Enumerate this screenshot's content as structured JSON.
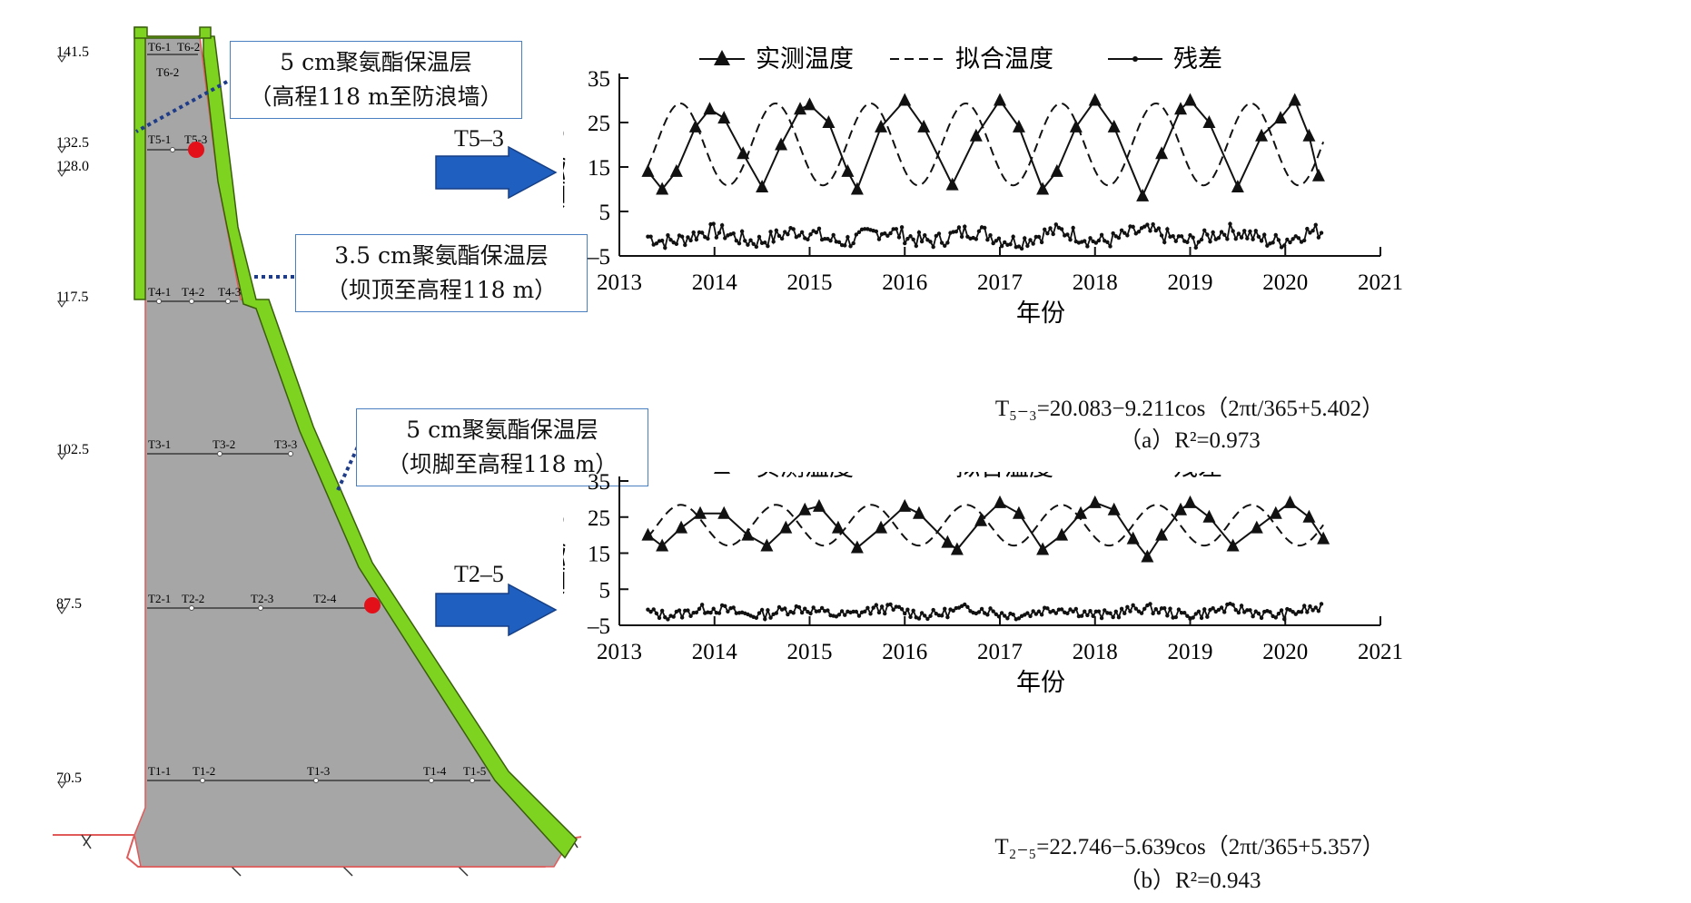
{
  "dam": {
    "elevations": [
      "141.5",
      "132.5",
      "128.0",
      "117.5",
      "102.5",
      "87.5",
      "70.5"
    ],
    "sensor_rows": [
      [
        "T6-1",
        "T6-2"
      ],
      [
        "T6-2"
      ],
      [
        "T5-1",
        "T5-3"
      ],
      [
        "T4-1",
        "T4-2",
        "T4-3"
      ],
      [
        "T3-1",
        "T3-2",
        "T3-3"
      ],
      [
        "T2-1",
        "T2-2",
        "T2-3",
        "T2-4"
      ],
      [
        "T1-1",
        "T1-2",
        "T1-3",
        "T1-4",
        "T1-5"
      ]
    ],
    "callouts": [
      {
        "line1": "5 cm聚氨酯保温层",
        "line2": "（高程118 m至防浪墙）"
      },
      {
        "line1": "3.5 cm聚氨酯保温层",
        "line2": "（坝顶至高程118 m）"
      },
      {
        "line1": "5 cm聚氨酯保温层",
        "line2": "（坝脚至高程118 m）"
      }
    ],
    "arrows": [
      "T5–3",
      "T2–5"
    ],
    "colors": {
      "insulation": "#7ed321",
      "concrete": "#a6a6a6",
      "arrow": "#1f5fbf",
      "marker": "#e3101a",
      "foundation": "#e05a5a"
    }
  },
  "chart_data": [
    {
      "type": "line",
      "id": "a",
      "legend": [
        "实测温度",
        "拟合温度",
        "残差"
      ],
      "ylabel": "温度/℃",
      "xlabel": "年份",
      "yticks": [
        "35",
        "25",
        "15",
        "5",
        "–5"
      ],
      "ylim": [
        -5,
        35
      ],
      "xticks": [
        "2013",
        "2014",
        "2015",
        "2016",
        "2017",
        "2018",
        "2019",
        "2020",
        "2021"
      ],
      "xlim": [
        2013,
        2021
      ],
      "x_start": 2013.3,
      "x_end": 2020.4,
      "fit": {
        "a": 20.083,
        "b": 9.211,
        "phase": 5.402
      },
      "measured_sample": [
        [
          2013.3,
          14
        ],
        [
          2013.45,
          10
        ],
        [
          2013.6,
          14
        ],
        [
          2013.8,
          24
        ],
        [
          2013.95,
          28
        ],
        [
          2014.1,
          26
        ],
        [
          2014.3,
          18
        ],
        [
          2014.5,
          10.5
        ],
        [
          2014.7,
          20
        ],
        [
          2014.9,
          28
        ],
        [
          2015.0,
          29
        ],
        [
          2015.2,
          25
        ],
        [
          2015.4,
          14
        ],
        [
          2015.5,
          10
        ],
        [
          2015.75,
          24
        ],
        [
          2016.0,
          30
        ],
        [
          2016.2,
          24
        ],
        [
          2016.5,
          11
        ],
        [
          2016.75,
          22
        ],
        [
          2017.0,
          30
        ],
        [
          2017.2,
          24
        ],
        [
          2017.45,
          10
        ],
        [
          2017.6,
          14
        ],
        [
          2017.8,
          24
        ],
        [
          2018.0,
          30
        ],
        [
          2018.2,
          24
        ],
        [
          2018.5,
          8.5
        ],
        [
          2018.7,
          18
        ],
        [
          2018.9,
          28
        ],
        [
          2019.0,
          30
        ],
        [
          2019.2,
          25
        ],
        [
          2019.5,
          10.5
        ],
        [
          2019.75,
          22
        ],
        [
          2019.95,
          26
        ],
        [
          2020.1,
          30
        ],
        [
          2020.25,
          22
        ],
        [
          2020.35,
          13
        ]
      ],
      "residual_range": [
        -3.5,
        3
      ],
      "equation": "T₅₋₃=20.083−9.211cos（2πt/365+5.402）",
      "caption_prefix": "（a）",
      "r2": "R²=0.973"
    },
    {
      "type": "line",
      "id": "b",
      "legend": [
        "实测温度",
        "拟合温度",
        "残差"
      ],
      "ylabel": "温度/℃",
      "xlabel": "年份",
      "yticks": [
        "35",
        "25",
        "15",
        "5",
        "–5"
      ],
      "ylim": [
        -5,
        35
      ],
      "xticks": [
        "2013",
        "2014",
        "2015",
        "2016",
        "2017",
        "2018",
        "2019",
        "2020",
        "2021"
      ],
      "xlim": [
        2013,
        2021
      ],
      "x_start": 2013.3,
      "x_end": 2020.4,
      "fit": {
        "a": 22.746,
        "b": 5.639,
        "phase": 5.357
      },
      "measured_sample": [
        [
          2013.3,
          20
        ],
        [
          2013.45,
          17
        ],
        [
          2013.65,
          22
        ],
        [
          2013.85,
          26
        ],
        [
          2014.1,
          26
        ],
        [
          2014.35,
          20
        ],
        [
          2014.55,
          17
        ],
        [
          2014.75,
          22
        ],
        [
          2014.95,
          27
        ],
        [
          2015.1,
          28
        ],
        [
          2015.3,
          22
        ],
        [
          2015.5,
          16.5
        ],
        [
          2015.75,
          22
        ],
        [
          2016.0,
          28
        ],
        [
          2016.15,
          26
        ],
        [
          2016.45,
          18
        ],
        [
          2016.55,
          16
        ],
        [
          2016.8,
          24
        ],
        [
          2017.0,
          29
        ],
        [
          2017.2,
          26
        ],
        [
          2017.45,
          16
        ],
        [
          2017.65,
          20
        ],
        [
          2017.85,
          26
        ],
        [
          2018.0,
          29
        ],
        [
          2018.2,
          27
        ],
        [
          2018.4,
          19
        ],
        [
          2018.55,
          14
        ],
        [
          2018.7,
          20
        ],
        [
          2018.9,
          27
        ],
        [
          2019.0,
          29
        ],
        [
          2019.2,
          25
        ],
        [
          2019.45,
          17
        ],
        [
          2019.7,
          22
        ],
        [
          2019.9,
          26
        ],
        [
          2020.05,
          29
        ],
        [
          2020.25,
          25
        ],
        [
          2020.4,
          19
        ]
      ],
      "residual_range": [
        -3.5,
        1.5
      ],
      "equation": "T₂₋₅=22.746−5.639cos（2πt/365+5.357）",
      "caption_prefix": "（b）",
      "r2": "R²=0.943"
    }
  ]
}
